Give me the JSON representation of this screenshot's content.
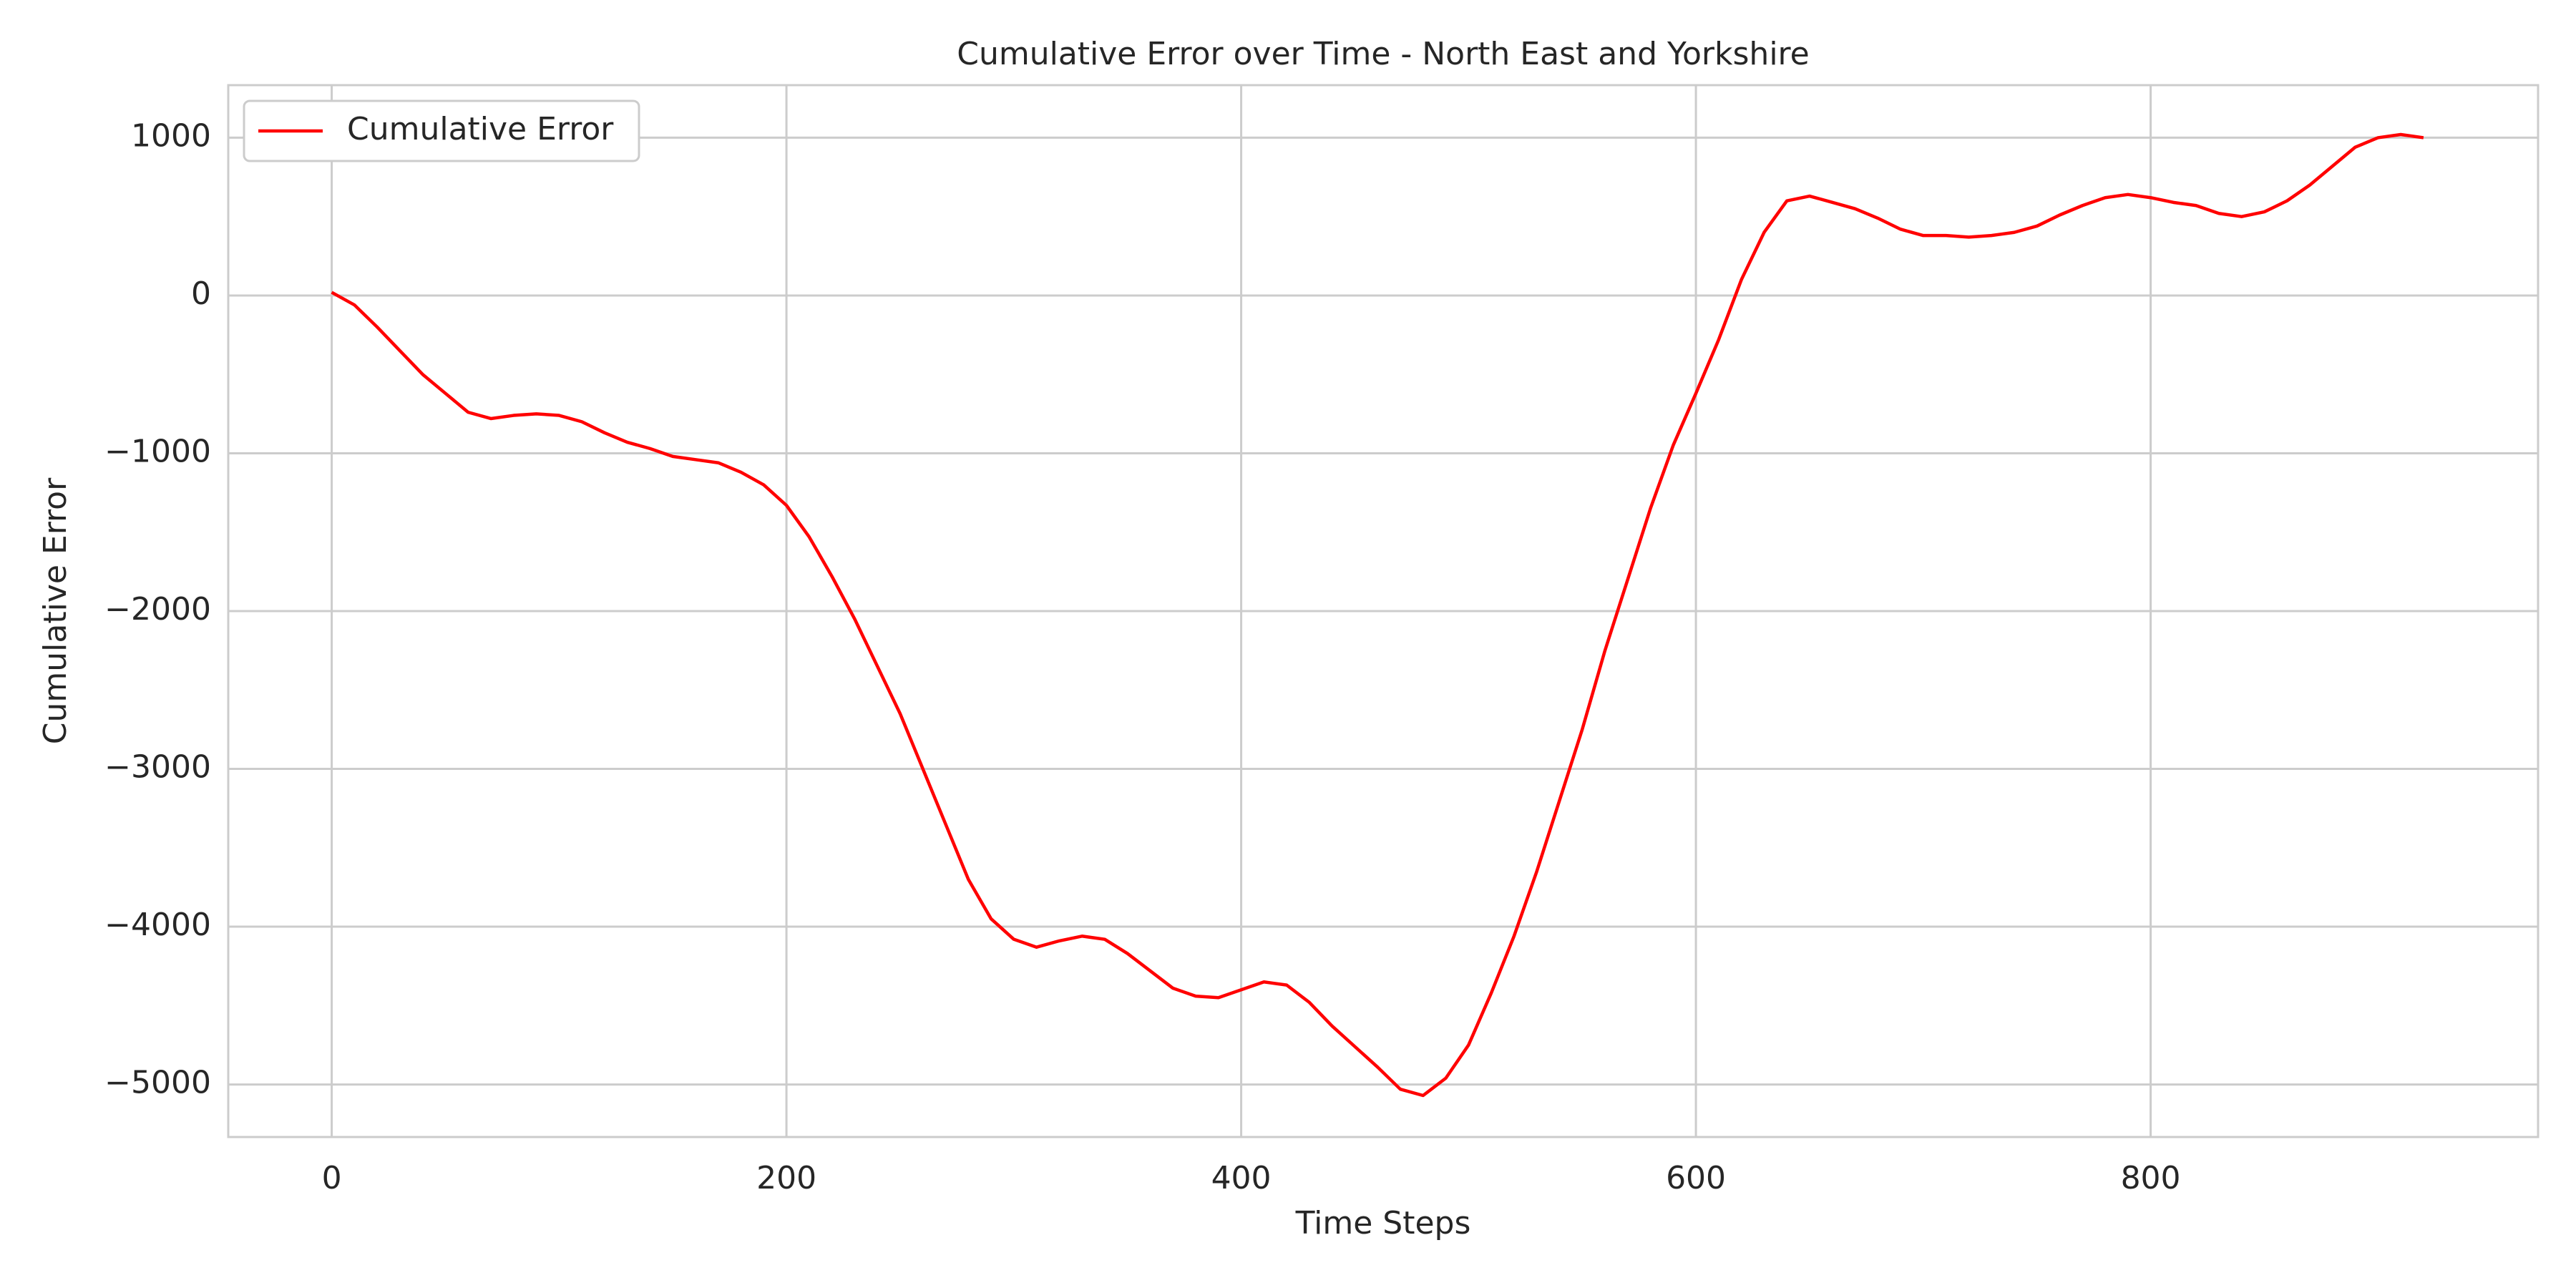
{
  "chart_data": {
    "type": "line",
    "title": "Cumulative Error over Time - North East and Yorkshire",
    "xlabel": "Time Steps",
    "ylabel": "Cumulative Error",
    "x": [
      0,
      10,
      20,
      30,
      40,
      50,
      60,
      70,
      80,
      90,
      100,
      110,
      120,
      130,
      140,
      150,
      160,
      170,
      180,
      190,
      200,
      210,
      220,
      230,
      240,
      250,
      260,
      270,
      280,
      290,
      300,
      310,
      320,
      330,
      340,
      350,
      360,
      370,
      380,
      390,
      400,
      410,
      420,
      430,
      440,
      450,
      460,
      470,
      480,
      490,
      500,
      510,
      520,
      530,
      540,
      550,
      560,
      570,
      580,
      590,
      600,
      610,
      620,
      630,
      640,
      650,
      660,
      670,
      680,
      690,
      700,
      710,
      720,
      730,
      740,
      750,
      760,
      770,
      780,
      790,
      800,
      810,
      820,
      830,
      840,
      850,
      860,
      870,
      880,
      890,
      900,
      910,
      920
    ],
    "series": [
      {
        "name": "Cumulative Error",
        "color": "#ff0000",
        "values": [
          20,
          -60,
          -200,
          -350,
          -500,
          -620,
          -740,
          -780,
          -760,
          -750,
          -760,
          -800,
          -870,
          -930,
          -970,
          -1020,
          -1040,
          -1060,
          -1120,
          -1200,
          -1330,
          -1530,
          -1780,
          -2050,
          -2350,
          -2650,
          -3000,
          -3350,
          -3700,
          -3950,
          -4080,
          -4130,
          -4090,
          -4060,
          -4080,
          -4170,
          -4280,
          -4390,
          -4440,
          -4450,
          -4400,
          -4350,
          -4370,
          -4480,
          -4630,
          -4760,
          -4890,
          -5030,
          -5070,
          -4960,
          -4750,
          -4420,
          -4060,
          -3650,
          -3200,
          -2750,
          -2250,
          -1800,
          -1350,
          -950,
          -620,
          -280,
          100,
          400,
          600,
          630,
          590,
          550,
          490,
          420,
          380,
          380,
          370,
          380,
          400,
          440,
          510,
          570,
          620,
          640,
          620,
          590,
          570,
          520,
          500,
          530,
          600,
          700,
          820,
          940,
          1000,
          1020,
          1000
        ]
      }
    ],
    "xlim": [
      -45.5,
      970.4
    ],
    "ylim": [
      -5333,
      1333
    ],
    "xticks": [
      0,
      200,
      400,
      600,
      800
    ],
    "yticks": [
      {
        "value": -5000,
        "label": "−5000"
      },
      {
        "value": -4000,
        "label": "−4000"
      },
      {
        "value": -3000,
        "label": "−3000"
      },
      {
        "value": -2000,
        "label": "−2000"
      },
      {
        "value": -1000,
        "label": "−1000"
      },
      0,
      1000
    ],
    "grid": true,
    "legend": "upper left"
  }
}
